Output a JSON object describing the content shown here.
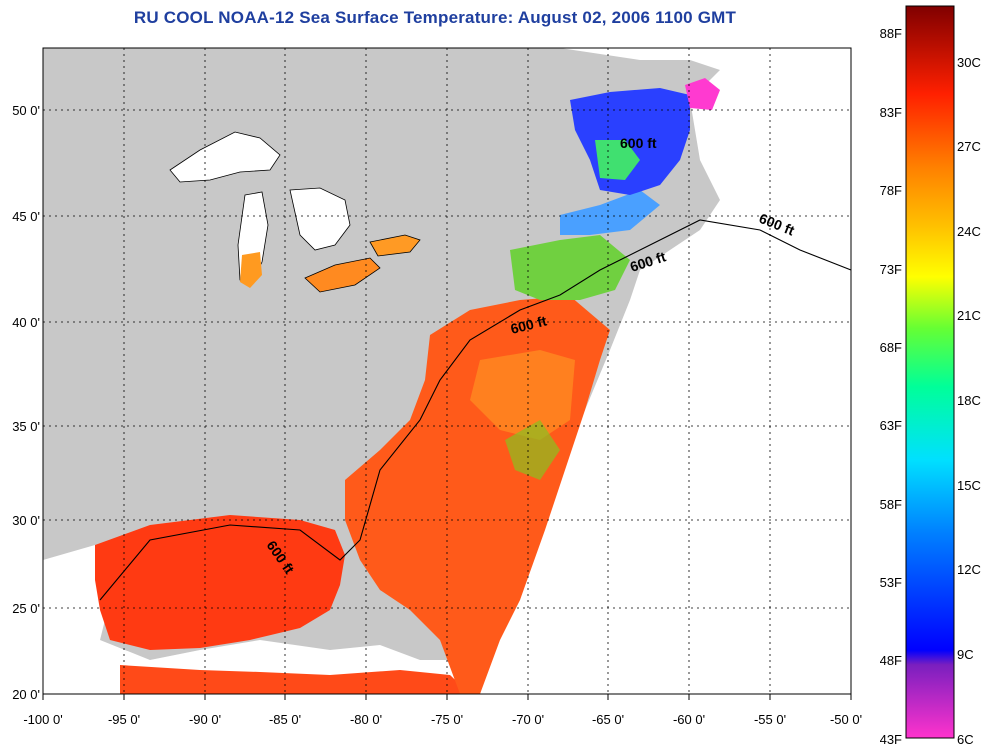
{
  "title": "RU COOL  NOAA-12  Sea Surface Temperature:  August 02, 2006 1100 GMT",
  "map": {
    "lon_labels": [
      "-100 0'",
      "-95 0'",
      "-90 0'",
      "-85 0'",
      "-80 0'",
      "-75 0'",
      "-70 0'",
      "-65 0'",
      "-60 0'",
      "-55 0'",
      "-50 0'"
    ],
    "lat_labels": [
      "50 0'",
      "45 0'",
      "40 0'",
      "35 0'",
      "30 0'",
      "25 0'",
      "20 0'"
    ],
    "lon_range": [
      -100,
      -50
    ],
    "lat_range": [
      20,
      52.5
    ],
    "contour_labels": [
      "600 ft",
      "600 ft",
      "600 ft",
      "600 ft",
      "600 ft"
    ],
    "colors": {
      "land": "#c8c8c8",
      "no_data": "#ffffff",
      "coastline": "#000000"
    }
  },
  "colorbar": {
    "fahrenheit_labels": [
      "88F",
      "83F",
      "78F",
      "73F",
      "68F",
      "63F",
      "58F",
      "53F",
      "48F",
      "43F"
    ],
    "celsius_labels": [
      "30C",
      "27C",
      "24C",
      "21C",
      "18C",
      "15C",
      "12C",
      "9C",
      "6C"
    ],
    "range_c": [
      6,
      32
    ],
    "gradient": [
      "#ff33cc",
      "#7a1fbf",
      "#0000ff",
      "#0080ff",
      "#00e0ff",
      "#00ff99",
      "#66ff33",
      "#ffff00",
      "#ffc000",
      "#ff8000",
      "#ff2000",
      "#800000"
    ]
  }
}
